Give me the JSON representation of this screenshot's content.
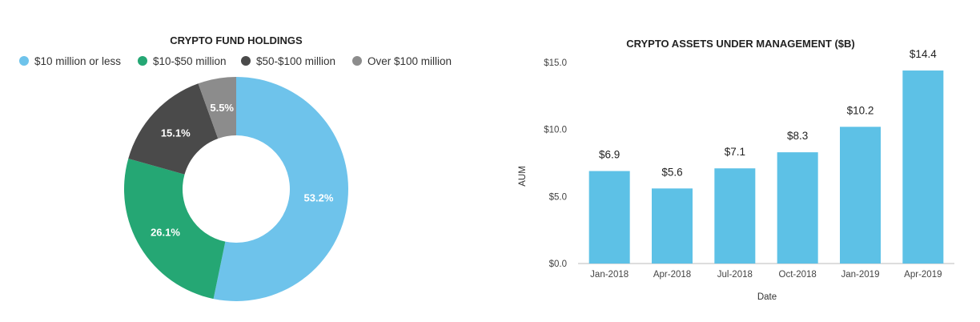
{
  "chart_data": [
    {
      "type": "pie",
      "donut": true,
      "title": "CRYPTO FUND HOLDINGS",
      "legend_position": "top",
      "slices": [
        {
          "name": "$10 million or less",
          "value": 53.2,
          "label": "53.2%",
          "color": "#6EC3EB"
        },
        {
          "name": "$10-$50 million",
          "value": 26.1,
          "label": "26.1%",
          "color": "#25A774"
        },
        {
          "name": "$50-$100 million",
          "value": 15.1,
          "label": "15.1%",
          "color": "#4A4A4A"
        },
        {
          "name": "Over $100 million",
          "value": 5.5,
          "label": "5.5%",
          "color": "#8C8C8C"
        }
      ]
    },
    {
      "type": "bar",
      "title": "CRYPTO ASSETS UNDER MANAGEMENT ($B)",
      "xlabel": "Date",
      "ylabel": "AUM",
      "ylim": [
        0,
        15
      ],
      "yticks": [
        {
          "value": 0,
          "label": "$0.0"
        },
        {
          "value": 5,
          "label": "$5.0"
        },
        {
          "value": 10,
          "label": "$10.0"
        },
        {
          "value": 15,
          "label": "$15.0"
        }
      ],
      "categories": [
        "Jan-2018",
        "Apr-2018",
        "Jul-2018",
        "Oct-2018",
        "Jan-2019",
        "Apr-2019"
      ],
      "values": [
        6.9,
        5.6,
        7.1,
        8.3,
        10.2,
        14.4
      ],
      "data_labels": [
        "$6.9",
        "$5.6",
        "$7.1",
        "$8.3",
        "$10.2",
        "$14.4"
      ],
      "bar_color": "#5DC1E6",
      "grid": false
    }
  ]
}
